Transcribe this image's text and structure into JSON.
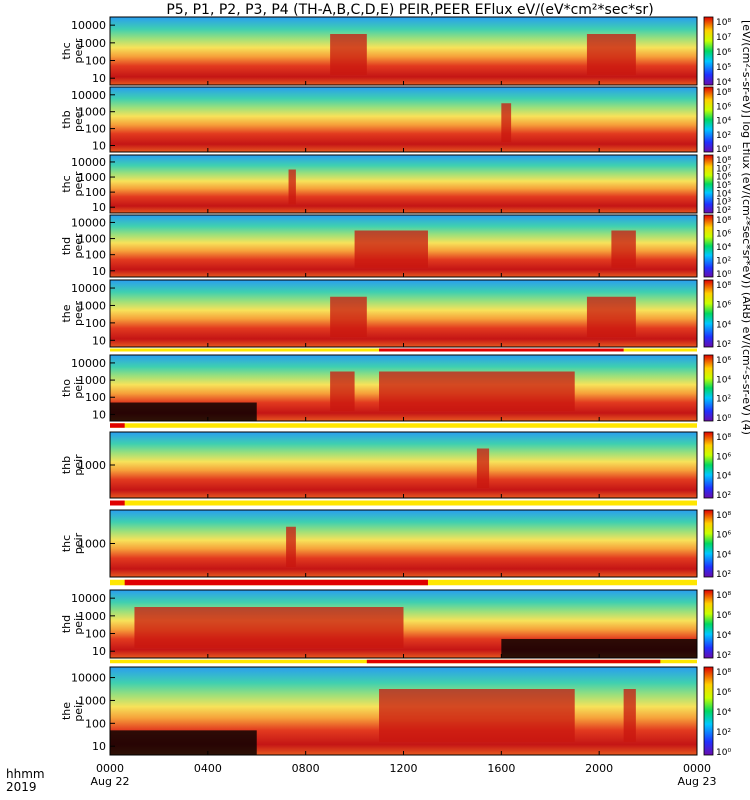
{
  "title": "P5, P1, P2, P3, P4 (TH-A,B,C,D,E) PEIR,PEER EFlux eV/(eV*cm²*sec*sr)",
  "colorbar_label": "[eV/(cm²-s-sr-eV)] log Eflux (eV/(cm²*sec*sr*eV)) (ARB) eV/(cm²-s-sr-eV) (4)",
  "footer": {
    "hhmm": "hhmm",
    "year": "2019"
  },
  "colors": {
    "stripe_red": "#e00000",
    "stripe_yellow": "#ffe600",
    "black": "#000000"
  },
  "chart_data": {
    "type": "heatmap",
    "xlabel": "hhmm",
    "x_ticks": [
      "0000",
      "0400",
      "0800",
      "1200",
      "1600",
      "2000",
      "0000"
    ],
    "x_tick_sublabels": [
      "Aug 22",
      "",
      "",
      "",
      "",
      "",
      "Aug 23"
    ],
    "x_range_hours": [
      0,
      24
    ],
    "colorscale": "rainbow (blue → cyan → green → yellow → red), log scale",
    "panels": [
      {
        "ylabel": [
          "thc",
          "peer"
        ],
        "yticks": [
          "10000",
          "1000",
          "100",
          "10"
        ],
        "cbar_ticks": [
          "10⁸",
          "10⁷",
          "10⁶",
          "10⁵",
          "10⁴"
        ]
      },
      {
        "ylabel": [
          "thb",
          "peer"
        ],
        "yticks": [
          "10000",
          "1000",
          "100",
          "10"
        ],
        "cbar_ticks": [
          "10⁸",
          "10⁶",
          "10⁴",
          "10²",
          "10⁰"
        ]
      },
      {
        "ylabel": [
          "thc",
          "peer"
        ],
        "yticks": [
          "10000",
          "1000",
          "100",
          "10"
        ],
        "cbar_ticks": [
          "10⁸",
          "10⁷",
          "10⁶",
          "10⁵",
          "10⁴",
          "10³",
          "10²"
        ]
      },
      {
        "ylabel": [
          "thd",
          "peer"
        ],
        "yticks": [
          "10000",
          "1000",
          "100",
          "10"
        ],
        "cbar_ticks": [
          "10⁸",
          "10⁶",
          "10⁴",
          "10²",
          "10⁰"
        ]
      },
      {
        "ylabel": [
          "the",
          "peer"
        ],
        "yticks": [
          "10000",
          "1000",
          "100",
          "10"
        ],
        "cbar_ticks": [
          "10⁸",
          "10⁶",
          "10⁴",
          "10²"
        ]
      },
      {
        "ylabel": [
          "tho",
          "peir"
        ],
        "yticks": [
          "10000",
          "1000",
          "100",
          "10"
        ],
        "cbar_ticks": [
          "10⁶",
          "10⁴",
          "10²",
          "10⁰"
        ]
      },
      {
        "ylabel": [
          "thb",
          "peir"
        ],
        "yticks": [
          "1000"
        ],
        "cbar_ticks": [
          "10⁸",
          "10⁶",
          "10⁴",
          "10²"
        ]
      },
      {
        "ylabel": [
          "thc",
          "peir"
        ],
        "yticks": [
          "1000"
        ],
        "cbar_ticks": [
          "10⁸",
          "10⁶",
          "10⁴",
          "10²"
        ]
      },
      {
        "ylabel": [
          "thd",
          "peir"
        ],
        "yticks": [
          "10000",
          "1000",
          "100",
          "10"
        ],
        "cbar_ticks": [
          "10⁸",
          "10⁶",
          "10⁴",
          "10²"
        ]
      },
      {
        "ylabel": [
          "the",
          "peir"
        ],
        "yticks": [
          "10000",
          "1000",
          "100",
          "10"
        ],
        "cbar_ticks": [
          "10⁸",
          "10⁶",
          "10⁴",
          "10²",
          "10⁰"
        ]
      }
    ]
  }
}
